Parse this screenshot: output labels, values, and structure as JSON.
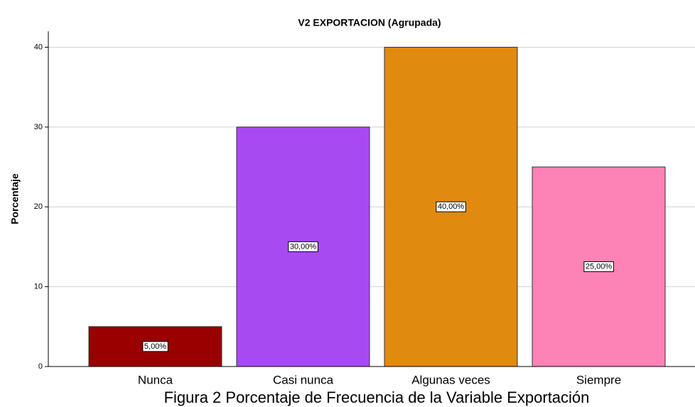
{
  "chart_data": {
    "type": "bar",
    "title": "V2 EXPORTACION (Agrupada)",
    "y_label": "Porcentaje",
    "caption": "Figura 2 Porcentaje de Frecuencia de la Variable Exportación",
    "categories": [
      "Nunca",
      "Casi nunca",
      "Algunas veces",
      "Siempre"
    ],
    "values": [
      5,
      30,
      40,
      25
    ],
    "value_labels": [
      "5,00%",
      "30,00%",
      "40,00%",
      "25,00%"
    ],
    "colors": [
      "#990000",
      "#a84af2",
      "#e08a10",
      "#fd82b5"
    ],
    "ylim": [
      0,
      42
    ],
    "yticks": [
      0,
      10,
      20,
      30,
      40
    ],
    "grid": true
  }
}
